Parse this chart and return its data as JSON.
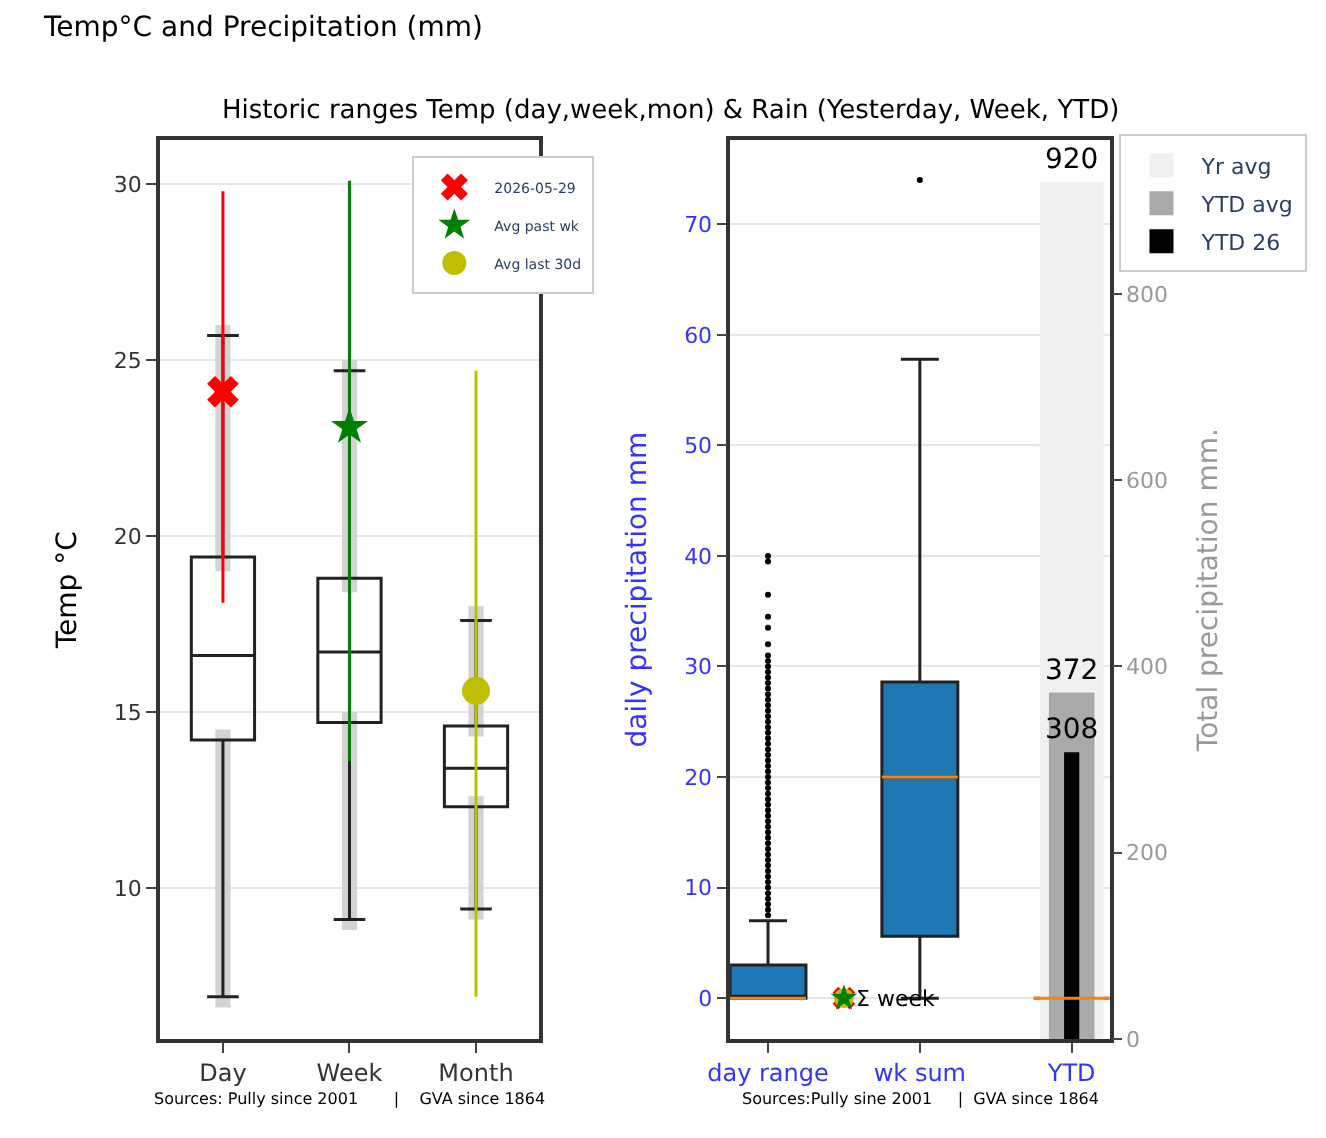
{
  "chart_data": [
    {
      "type": "box",
      "title": "Temp°C and Precipitation (mm)",
      "subtitle": "Historic ranges Temp (day,week,mon) & Rain (Yesterday, Week, YTD)",
      "ylabel": "Temp °C",
      "categories": [
        "Day",
        "Week",
        "Month"
      ],
      "ylim": [
        5.7,
        31.25
      ],
      "yticks": [
        10,
        15,
        20,
        25,
        30
      ],
      "grid": "y",
      "legend": "top right",
      "annotations": [
        "Sources: Pully since 2001       |    GVA since 1864"
      ],
      "series": [
        {
          "boxes": [
            {
              "low": 6.9,
              "q1": 14.2,
              "median": 16.6,
              "q3": 19.4,
              "high": 25.7
            },
            {
              "low": 9.1,
              "q1": 14.7,
              "median": 16.7,
              "q3": 18.8,
              "high": 24.7
            },
            {
              "low": 9.4,
              "q1": 12.3,
              "median": 13.4,
              "q3": 14.6,
              "high": 17.6
            }
          ]
        },
        {
          "type": "bar",
          "color": "#d3d3d3",
          "base": [
            6.6,
            8.8,
            9.1
          ],
          "values": [
            7.9,
            6.2,
            3.5
          ]
        },
        {
          "type": "bar",
          "color": "#d3d3d3",
          "base": [
            19.0,
            18.4,
            14.3
          ],
          "values": [
            7.0,
            6.6,
            3.7
          ]
        },
        {
          "type": "scatter",
          "name": "2026-05-29",
          "color": "#ff0000",
          "marker": "cross",
          "values": [
            24.1,
            null,
            null
          ],
          "errors": [
            [
              18.1,
              29.8
            ],
            null,
            null
          ]
        },
        {
          "type": "scatter",
          "name": "Avg past wk",
          "color": "#008000",
          "marker": "star",
          "values": [
            null,
            23.1,
            null
          ],
          "errors": [
            null,
            [
              13.6,
              30.1
            ],
            null
          ]
        },
        {
          "type": "scatter",
          "name": "Avg last 30d",
          "color": "#bfbf00",
          "marker": "circle",
          "values": [
            null,
            null,
            15.6
          ],
          "errors": [
            null,
            null,
            [
              6.9,
              24.7
            ]
          ]
        }
      ]
    },
    {
      "type": "box",
      "ylabel": "daily precipitation mm",
      "y2label": "Total precipitation mm.",
      "categories": [
        "day range",
        null,
        "wk sum",
        null,
        "YTD"
      ],
      "ylim": [
        -3.7,
        77.6
      ],
      "yticks": [
        0,
        10,
        20,
        30,
        40,
        50,
        60,
        70
      ],
      "y2lim": [
        0,
        965
      ],
      "y2ticks": [
        0,
        200,
        400,
        600,
        800
      ],
      "grid": "y",
      "legend": "top right",
      "annotations": [
        "Σ week",
        "Sources:Pully sine 2001     |  GVA since 1864"
      ],
      "series": [
        {
          "type": "bar",
          "axis": "y2",
          "name": "Yr avg",
          "color": "#f0f0f0",
          "values": [
            null,
            null,
            null,
            null,
            920
          ],
          "value_labels": [
            null,
            null,
            null,
            null,
            "920"
          ]
        },
        {
          "type": "bar",
          "axis": "y2",
          "name": "YTD avg",
          "color": "#aaaaaa",
          "values": [
            null,
            null,
            null,
            null,
            372
          ],
          "value_labels": [
            null,
            null,
            null,
            null,
            "372"
          ]
        },
        {
          "type": "bar",
          "axis": "y2",
          "name": "YTD 26",
          "color": "#000000",
          "values": [
            null,
            null,
            null,
            null,
            308
          ],
          "value_labels": [
            null,
            null,
            null,
            null,
            "308"
          ]
        },
        {
          "color": "#1f77b4",
          "boxes": [
            {
              "low": 0,
              "q1": 0,
              "median": 0,
              "q3": 3,
              "high": 7,
              "outliers": [
                7.5,
                8,
                8.5,
                9,
                9.5,
                10,
                10.5,
                11,
                11.5,
                12,
                12.5,
                13,
                13.5,
                14,
                14.5,
                15,
                15.5,
                16,
                16.5,
                17,
                17.5,
                18,
                18.5,
                19,
                19.5,
                20,
                20.5,
                21,
                21.5,
                22,
                22.5,
                23,
                23.5,
                24,
                24.5,
                25,
                25.5,
                26,
                26.5,
                27,
                27.5,
                28,
                28.5,
                29,
                29.5,
                30,
                30.5,
                31,
                32,
                33.5,
                34.5,
                36.5,
                39.5,
                40
              ]
            },
            null,
            {
              "low": 0,
              "q1": 5.6,
              "median": 20,
              "q3": 28.6,
              "high": 57.8,
              "outliers": [
                74
              ]
            },
            null,
            {
              "low": 0,
              "q1": 0,
              "median": 0,
              "q3": 0,
              "high": 0
            }
          ]
        },
        {
          "type": "scatter",
          "color": "#ff0000",
          "marker": "cross",
          "values": [
            null,
            0,
            null,
            null,
            null
          ]
        },
        {
          "type": "scatter",
          "color": "#bfbf00",
          "marker": "circle",
          "values": [
            null,
            0,
            null,
            null,
            null
          ]
        },
        {
          "type": "scatter",
          "color": "#008000",
          "marker": "star",
          "values": [
            null,
            0,
            null,
            null,
            null
          ]
        }
      ]
    }
  ]
}
